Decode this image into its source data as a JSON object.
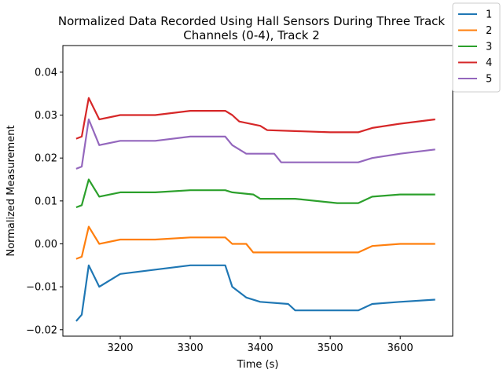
{
  "chart_data": {
    "type": "line",
    "title_line1": "Normalized Data Recorded Using Hall Sensors During Three Track",
    "title_line2": "Channels (0-4), Track 2",
    "xlabel": "Time (s)",
    "ylabel": "Normalized Measurement",
    "xlim": [
      3118,
      3675
    ],
    "ylim": [
      -0.0215,
      0.0462
    ],
    "xticks": [
      3200,
      3300,
      3400,
      3500,
      3600
    ],
    "yticks": [
      -0.02,
      -0.01,
      0.0,
      0.01,
      0.02,
      0.03,
      0.04
    ],
    "xtick_labels": [
      "3200",
      "3300",
      "3400",
      "3500",
      "3600"
    ],
    "ytick_labels": [
      "−0.02",
      "−0.01",
      "0.00",
      "0.01",
      "0.02",
      "0.03",
      "0.04"
    ],
    "grid": false,
    "legend_position": "top-right",
    "series": [
      {
        "name": "1",
        "color": "#1f77b4",
        "points": [
          [
            3137,
            -0.018
          ],
          [
            3145,
            -0.0165
          ],
          [
            3155,
            -0.005
          ],
          [
            3170,
            -0.01
          ],
          [
            3200,
            -0.007
          ],
          [
            3250,
            -0.006
          ],
          [
            3300,
            -0.005
          ],
          [
            3350,
            -0.005
          ],
          [
            3360,
            -0.01
          ],
          [
            3380,
            -0.0125
          ],
          [
            3400,
            -0.0135
          ],
          [
            3440,
            -0.014
          ],
          [
            3450,
            -0.0155
          ],
          [
            3540,
            -0.0155
          ],
          [
            3560,
            -0.014
          ],
          [
            3600,
            -0.0135
          ],
          [
            3650,
            -0.013
          ]
        ]
      },
      {
        "name": "2",
        "color": "#ff7f0e",
        "points": [
          [
            3137,
            -0.0035
          ],
          [
            3145,
            -0.003
          ],
          [
            3155,
            0.004
          ],
          [
            3170,
            0.0
          ],
          [
            3200,
            0.001
          ],
          [
            3250,
            0.001
          ],
          [
            3300,
            0.0015
          ],
          [
            3350,
            0.0015
          ],
          [
            3360,
            0.0
          ],
          [
            3380,
            0.0
          ],
          [
            3390,
            -0.002
          ],
          [
            3450,
            -0.002
          ],
          [
            3540,
            -0.002
          ],
          [
            3560,
            -0.0005
          ],
          [
            3600,
            0.0
          ],
          [
            3650,
            0.0
          ]
        ]
      },
      {
        "name": "3",
        "color": "#2ca02c",
        "points": [
          [
            3137,
            0.0085
          ],
          [
            3145,
            0.009
          ],
          [
            3155,
            0.015
          ],
          [
            3170,
            0.011
          ],
          [
            3200,
            0.012
          ],
          [
            3250,
            0.012
          ],
          [
            3300,
            0.0125
          ],
          [
            3350,
            0.0125
          ],
          [
            3360,
            0.012
          ],
          [
            3390,
            0.0115
          ],
          [
            3400,
            0.0105
          ],
          [
            3450,
            0.0105
          ],
          [
            3510,
            0.0095
          ],
          [
            3540,
            0.0095
          ],
          [
            3560,
            0.011
          ],
          [
            3600,
            0.0115
          ],
          [
            3650,
            0.0115
          ]
        ]
      },
      {
        "name": "4",
        "color": "#d62728",
        "points": [
          [
            3137,
            0.0245
          ],
          [
            3145,
            0.025
          ],
          [
            3155,
            0.034
          ],
          [
            3170,
            0.029
          ],
          [
            3200,
            0.03
          ],
          [
            3250,
            0.03
          ],
          [
            3300,
            0.031
          ],
          [
            3350,
            0.031
          ],
          [
            3360,
            0.03
          ],
          [
            3370,
            0.0285
          ],
          [
            3400,
            0.0275
          ],
          [
            3410,
            0.0265
          ],
          [
            3500,
            0.026
          ],
          [
            3540,
            0.026
          ],
          [
            3560,
            0.027
          ],
          [
            3600,
            0.028
          ],
          [
            3650,
            0.029
          ]
        ]
      },
      {
        "name": "5",
        "color": "#9467bd",
        "points": [
          [
            3137,
            0.0175
          ],
          [
            3145,
            0.018
          ],
          [
            3155,
            0.029
          ],
          [
            3170,
            0.023
          ],
          [
            3200,
            0.024
          ],
          [
            3250,
            0.024
          ],
          [
            3300,
            0.025
          ],
          [
            3350,
            0.025
          ],
          [
            3360,
            0.023
          ],
          [
            3380,
            0.021
          ],
          [
            3420,
            0.021
          ],
          [
            3430,
            0.019
          ],
          [
            3500,
            0.019
          ],
          [
            3540,
            0.019
          ],
          [
            3560,
            0.02
          ],
          [
            3600,
            0.021
          ],
          [
            3650,
            0.022
          ]
        ]
      }
    ]
  }
}
